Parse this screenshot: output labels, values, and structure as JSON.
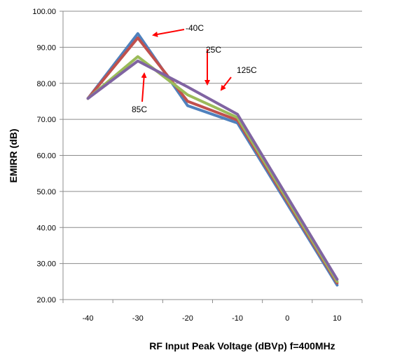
{
  "chart_data": {
    "type": "line",
    "title": "",
    "xlabel": "RF Input Peak Voltage (dBVp) f=400MHz",
    "ylabel": "EMIRR (dB)",
    "x": [
      -40,
      -30,
      -20,
      -10,
      0,
      10
    ],
    "x_tick_labels": [
      "-40",
      "-30",
      "-20",
      "-10",
      "0",
      "10"
    ],
    "y_tick_labels": [
      "100.00",
      "90.00",
      "80.00",
      "70.00",
      "60.00",
      "50.00",
      "40.00",
      "30.00",
      "20.00"
    ],
    "ylim": [
      20,
      100
    ],
    "xlim": [
      -45,
      15
    ],
    "grid": "horizontal",
    "legend": "none",
    "series": [
      {
        "name": "-40C",
        "color": "#4f81bd",
        "x": [
          -40,
          -30,
          -20,
          -10,
          10
        ],
        "values": [
          75.8,
          93.8,
          73.8,
          69.0,
          24.0
        ]
      },
      {
        "name": "25C",
        "color": "#c0504d",
        "x": [
          -40,
          -30,
          -20,
          -10,
          10
        ],
        "values": [
          75.8,
          92.6,
          75.0,
          69.8,
          24.6
        ]
      },
      {
        "name": "85C",
        "color": "#9bbb59",
        "x": [
          -40,
          -30,
          -20,
          -10,
          10
        ],
        "values": [
          75.8,
          87.4,
          76.8,
          70.5,
          25.0
        ]
      },
      {
        "name": "125C",
        "color": "#8064a2",
        "x": [
          -40,
          -30,
          -20,
          -10,
          10
        ],
        "values": [
          75.8,
          86.2,
          79.0,
          71.4,
          25.6
        ]
      }
    ],
    "annotations": [
      {
        "text": "-40C",
        "arrow_color": "#ff0000"
      },
      {
        "text": "25C",
        "arrow_color": "#ff0000"
      },
      {
        "text": "125C",
        "arrow_color": "#ff0000"
      },
      {
        "text": "85C",
        "arrow_color": "#ff0000"
      }
    ]
  }
}
